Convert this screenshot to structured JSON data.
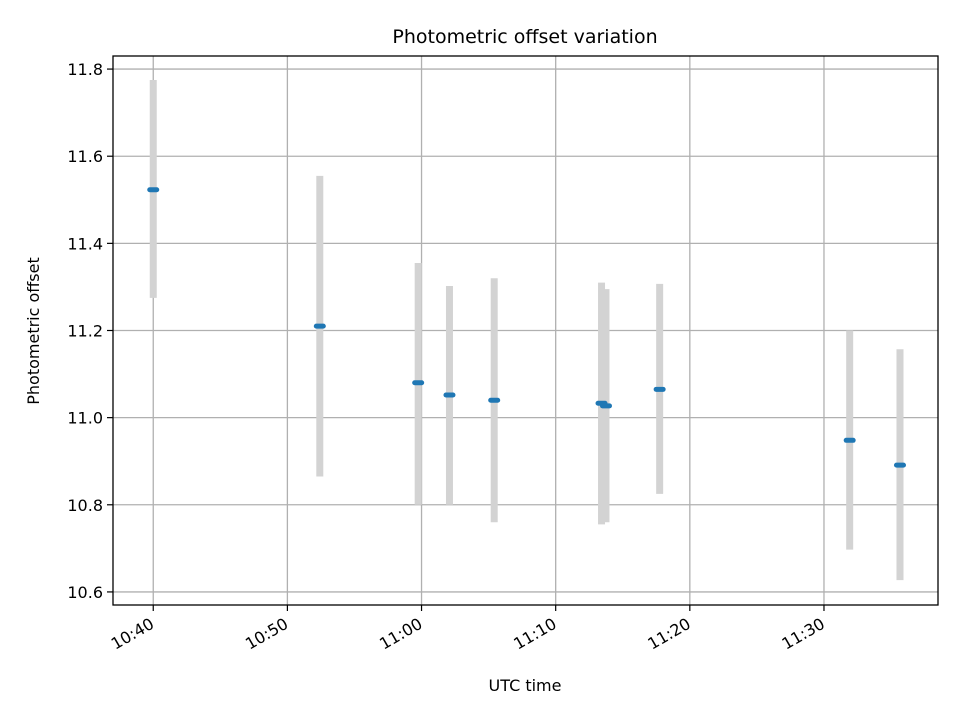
{
  "chart_data": {
    "type": "scatter",
    "title": "Photometric offset variation",
    "xlabel": "UTC time",
    "ylabel": "Photometric offset",
    "x_ticks": [
      "10:40",
      "10:50",
      "11:00",
      "11:10",
      "11:20",
      "11:30"
    ],
    "y_ticks": [
      "10.6",
      "10.8",
      "11.0",
      "11.2",
      "11.4",
      "11.6",
      "11.8"
    ],
    "xlim": [
      "10:37",
      "11:38.5"
    ],
    "ylim": [
      10.57,
      11.83
    ],
    "grid": true,
    "points": [
      {
        "x": "10:40:00",
        "y": 11.523,
        "yerr_low": 11.275,
        "yerr_high": 11.775
      },
      {
        "x": "10:52:25",
        "y": 11.21,
        "yerr_low": 10.865,
        "yerr_high": 11.555
      },
      {
        "x": "10:59:45",
        "y": 11.08,
        "yerr_low": 10.8,
        "yerr_high": 11.355
      },
      {
        "x": "11:02:05",
        "y": 11.052,
        "yerr_low": 10.8,
        "yerr_high": 11.302
      },
      {
        "x": "11:05:25",
        "y": 11.04,
        "yerr_low": 10.76,
        "yerr_high": 11.32
      },
      {
        "x": "11:13:25",
        "y": 11.033,
        "yerr_low": 10.755,
        "yerr_high": 11.31
      },
      {
        "x": "11:13:45",
        "y": 11.027,
        "yerr_low": 10.76,
        "yerr_high": 11.295
      },
      {
        "x": "11:17:45",
        "y": 11.065,
        "yerr_low": 10.825,
        "yerr_high": 11.307
      },
      {
        "x": "11:31:55",
        "y": 10.948,
        "yerr_low": 10.697,
        "yerr_high": 11.2
      },
      {
        "x": "11:35:40",
        "y": 10.891,
        "yerr_low": 10.627,
        "yerr_high": 11.157
      }
    ],
    "colors": {
      "point": "#1f77b4",
      "errorbar": "#d3d3d3",
      "grid": "#b0b0b0",
      "axes": "#000000"
    }
  }
}
